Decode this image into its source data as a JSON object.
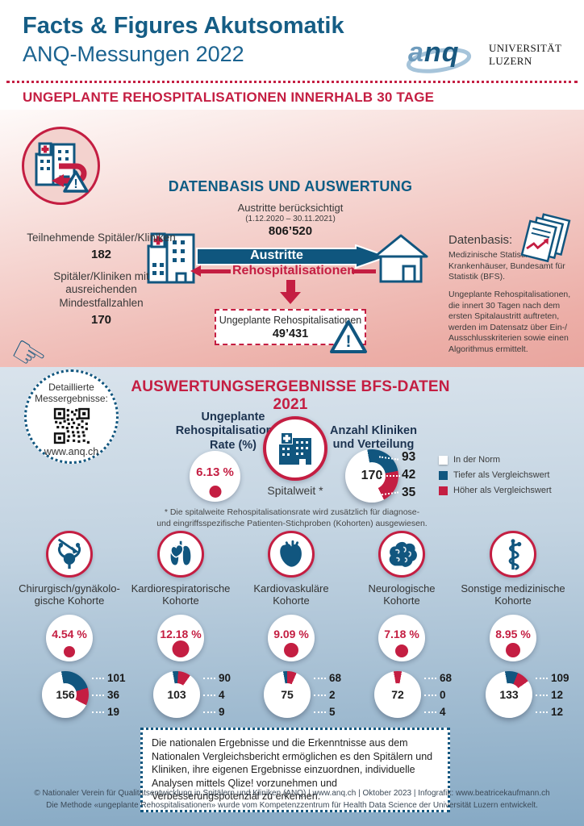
{
  "colors": {
    "accent_blue": "#11567f",
    "accent_red": "#c41e42",
    "title_blue": "#155d85",
    "norm_white": "#ffffff",
    "pink_bg": "#eba9a2",
    "blue_bg": "#8fb0ca"
  },
  "header": {
    "title_line1": "Facts & Figures Akutsomatik",
    "title_line2": "ANQ-Messungen 2022",
    "logo_text_light": "a",
    "logo_text_dark": "nq",
    "university_line1": "UNIVERSITÄT",
    "university_line2": "LUZERN"
  },
  "intro": {
    "section_title": "UNGEPLANTE REHOSPITALISATIONEN INNERHALB 30 TAGE"
  },
  "datenbasis": {
    "heading": "DATENBASIS UND AUSWERTUNG",
    "austritte_label": "Austritte berücksichtigt",
    "austritte_period": "(1.12.2020 – 30.11.2021)",
    "austritte_value": "806’520",
    "arrow_label": "Austritte",
    "rehosp_label": "Rehospitalisationen",
    "unplanned_label": "Ungeplante Rehospitalisationen",
    "unplanned_value": "49’431",
    "left_stats": [
      {
        "label": "Teilnehmende Spitäler/Kliniken",
        "value": "182"
      },
      {
        "label": "Spitäler/Kliniken mit ausreichenden Mindestfallzahlen",
        "value": "170"
      }
    ],
    "datenbasis_title": "Datenbasis:",
    "datenbasis_p1": "Medizinische Statistik der Krankenhäuser, Bundesamt für Statistik (BFS).",
    "datenbasis_p2": "Ungeplante Rehospitalisationen, die innert 30 Tagen nach dem ersten Spitalaustritt auftreten, werden im Datensatz über Ein-/ Ausschlusskriterien sowie einen Algorithmus ermittelt."
  },
  "results": {
    "qr_label_line1": "Detaillierte",
    "qr_label_line2": "Messergebnisse:",
    "qr_url": "www.anq.ch",
    "heading": "AUSWERTUNGSERGEBNISSE BFS-DATEN 2021",
    "rate_title": "Ungeplante Rehospitalisationen: Rate (%)",
    "spitalweit_rate": "6.13 %",
    "spitalweit_label": "Spitalweit *",
    "verteilung_title": "Anzahl Kliniken und Verteilung",
    "legend": [
      {
        "label": "In der Norm",
        "color": "#ffffff"
      },
      {
        "label": "Tiefer als Vergleichswert",
        "color": "#11567f"
      },
      {
        "label": "Höher als Vergleichswert",
        "color": "#c41e42"
      }
    ],
    "footnote_line1": "* Die spitalweite Rehospitalisationsrate wird zusätzlich für diagnose-",
    "footnote_line2": "und eingriffsspezifische Patienten-Stichproben (Kohorten) ausgewiesen."
  },
  "cohorts": [
    {
      "name_line1": "Chirurgisch/gynäkolo-",
      "name_line2": "gische Kohorte",
      "rate": "4.54 %"
    },
    {
      "name_line1": "Kardiorespiratorische",
      "name_line2": "Kohorte",
      "rate": "12.18 %"
    },
    {
      "name_line1": "Kardiovaskuläre",
      "name_line2": "Kohorte",
      "rate": "9.09 %"
    },
    {
      "name_line1": "Neurologische",
      "name_line2": "Kohorte",
      "rate": "7.18 %"
    },
    {
      "name_line1": "Sonstige medizinische",
      "name_line2": "Kohorte",
      "rate": "8.95 %"
    }
  ],
  "chart_data": [
    {
      "type": "donut",
      "title": "Anzahl Kliniken und Verteilung",
      "center_label": "170",
      "categories": [
        "In der Norm",
        "Tiefer als Vergleichswert",
        "Höher als Vergleichswert"
      ],
      "values": [
        93,
        42,
        35
      ],
      "colors": [
        "#ffffff",
        "#11567f",
        "#c41e42"
      ]
    },
    {
      "type": "donut",
      "title": "Chirurgisch/gynäkologische Kohorte",
      "center_label": "156",
      "categories": [
        "In der Norm",
        "Tiefer als Vergleichswert",
        "Höher als Vergleichswert"
      ],
      "values": [
        101,
        36,
        19
      ],
      "colors": [
        "#ffffff",
        "#11567f",
        "#c41e42"
      ]
    },
    {
      "type": "donut",
      "title": "Kardiorespiratorische Kohorte",
      "center_label": "103",
      "categories": [
        "In der Norm",
        "Tiefer als Vergleichswert",
        "Höher als Vergleichswert"
      ],
      "values": [
        90,
        4,
        9
      ],
      "colors": [
        "#ffffff",
        "#11567f",
        "#c41e42"
      ]
    },
    {
      "type": "donut",
      "title": "Kardiovaskuläre Kohorte",
      "center_label": "75",
      "categories": [
        "In der Norm",
        "Tiefer als Vergleichswert",
        "Höher als Vergleichswert"
      ],
      "values": [
        68,
        2,
        5
      ],
      "colors": [
        "#ffffff",
        "#11567f",
        "#c41e42"
      ]
    },
    {
      "type": "donut",
      "title": "Neurologische Kohorte",
      "center_label": "72",
      "categories": [
        "In der Norm",
        "Tiefer als Vergleichswert",
        "Höher als Vergleichswert"
      ],
      "values": [
        68,
        0,
        4
      ],
      "colors": [
        "#ffffff",
        "#11567f",
        "#c41e42"
      ]
    },
    {
      "type": "donut",
      "title": "Sonstige medizinische Kohorte",
      "center_label": "133",
      "categories": [
        "In der Norm",
        "Tiefer als Vergleichswert",
        "Höher als Vergleichswert"
      ],
      "values": [
        109,
        12,
        12
      ],
      "colors": [
        "#ffffff",
        "#11567f",
        "#c41e42"
      ]
    }
  ],
  "info_box": {
    "text": "Die nationalen Ergebnisse und die Erkenntnisse aus dem Nationalen Vergleichsbericht ermöglichen es den Spitälern und Kliniken, ihre eigenen Ergebnisse einzuordnen, individuelle Analysen mittels Qlize! vorzunehmen und Verbesserungspotenzial zu erkennen."
  },
  "footer": {
    "line1": "© Nationaler Verein für Qualitätsentwicklung in Spitälern und Kliniken (ANQ) | www.anq.ch | Oktober 2023 | Infografik: www.beatricekaufmann.ch",
    "line2": "Die Methode «ungeplante Rehospitalisationen» wurde vom Kompetenzzentrum für Health Data Science der Universität Luzern entwickelt."
  }
}
